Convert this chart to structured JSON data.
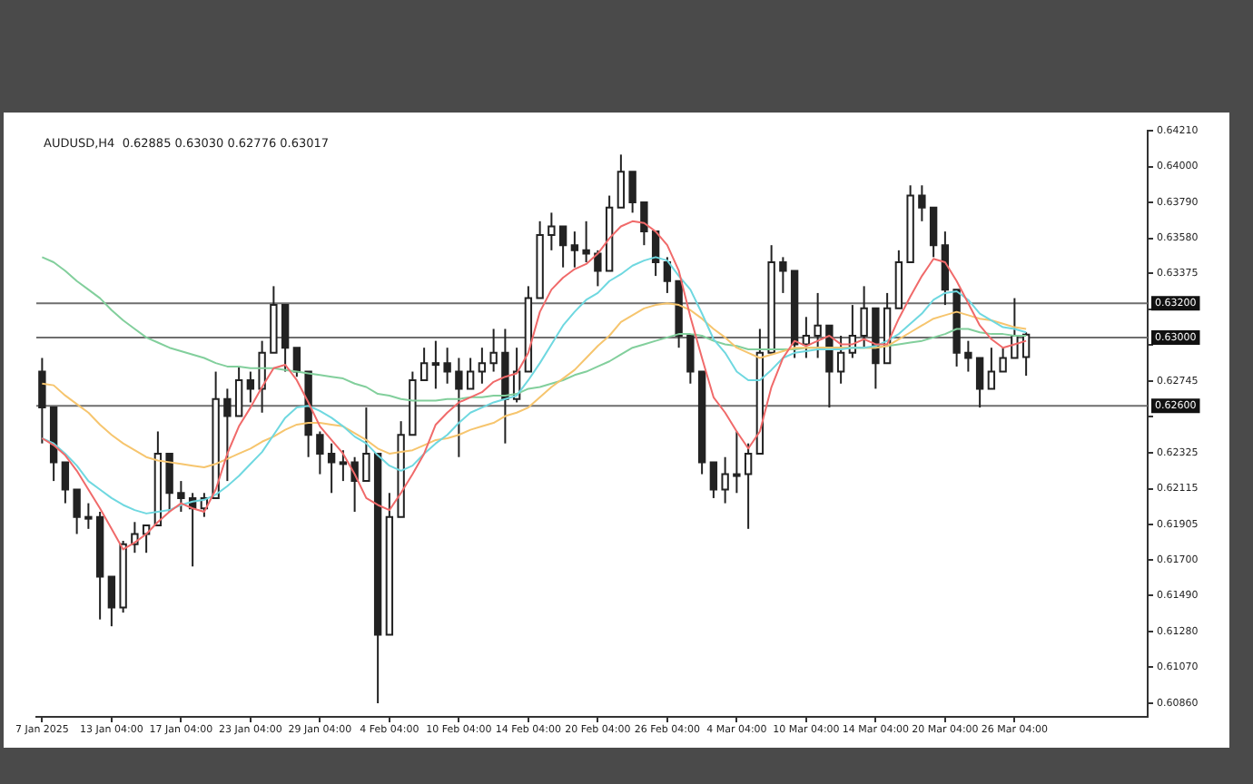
{
  "chart_data": {
    "type": "candlestick",
    "subtitle": "AUDUSD,H4  0.62885 0.63030 0.62776 0.63017",
    "categories": [
      "7 Jan 2025",
      null,
      null,
      null,
      null,
      null,
      "13 Jan 04:00",
      null,
      null,
      null,
      null,
      null,
      "17 Jan 04:00",
      null,
      null,
      null,
      null,
      null,
      "23 Jan 04:00",
      null,
      null,
      null,
      null,
      null,
      "29 Jan 04:00",
      null,
      null,
      null,
      null,
      null,
      "4 Feb 04:00",
      null,
      null,
      null,
      null,
      null,
      "10 Feb 04:00",
      null,
      null,
      null,
      null,
      null,
      "14 Feb 04:00",
      null,
      null,
      null,
      null,
      null,
      "20 Feb 04:00",
      null,
      null,
      null,
      null,
      null,
      "26 Feb 04:00",
      null,
      null,
      null,
      null,
      null,
      "4 Mar 04:00",
      null,
      null,
      null,
      null,
      null,
      "10 Mar 04:00",
      null,
      null,
      null,
      null,
      null,
      "14 Mar 04:00",
      null,
      null,
      null,
      null,
      null,
      "20 Mar 04:00",
      null,
      null,
      null,
      null,
      null,
      "26 Mar 04:00",
      null,
      null,
      null,
      null,
      null,
      null,
      null,
      null,
      null,
      null,
      null
    ],
    "ohlc": [
      [
        0.628,
        0.6288,
        0.6238,
        0.6259
      ],
      [
        0.6259,
        0.6259,
        0.6216,
        0.6227
      ],
      [
        0.6227,
        0.6227,
        0.6203,
        0.6211
      ],
      [
        0.6211,
        0.6211,
        0.6185,
        0.6195
      ],
      [
        0.6195,
        0.6203,
        0.6188,
        0.6195
      ],
      [
        0.6195,
        0.6198,
        0.6135,
        0.616
      ],
      [
        0.616,
        0.616,
        0.6131,
        0.6142
      ],
      [
        0.6142,
        0.6181,
        0.6139,
        0.6179
      ],
      [
        0.6179,
        0.6192,
        0.6174,
        0.6185
      ],
      [
        0.6185,
        0.619,
        0.6174,
        0.619
      ],
      [
        0.619,
        0.6245,
        0.619,
        0.6232
      ],
      [
        0.6232,
        0.6232,
        0.6198,
        0.6209
      ],
      [
        0.6209,
        0.6216,
        0.6198,
        0.6206
      ],
      [
        0.6206,
        0.6209,
        0.6166,
        0.62
      ],
      [
        0.62,
        0.6209,
        0.6195,
        0.6206
      ],
      [
        0.6206,
        0.628,
        0.6206,
        0.6264
      ],
      [
        0.6264,
        0.627,
        0.6216,
        0.6254
      ],
      [
        0.6254,
        0.6283,
        0.6254,
        0.6275
      ],
      [
        0.6275,
        0.628,
        0.6262,
        0.627
      ],
      [
        0.627,
        0.6298,
        0.6256,
        0.6291
      ],
      [
        0.6291,
        0.633,
        0.6291,
        0.6319
      ],
      [
        0.6319,
        0.6319,
        0.628,
        0.6294
      ],
      [
        0.6294,
        0.6294,
        0.6277,
        0.628
      ],
      [
        0.628,
        0.628,
        0.623,
        0.6243
      ],
      [
        0.6243,
        0.6245,
        0.622,
        0.6232
      ],
      [
        0.6232,
        0.6238,
        0.6209,
        0.6227
      ],
      [
        0.6227,
        0.6234,
        0.6216,
        0.6227
      ],
      [
        0.6227,
        0.623,
        0.6198,
        0.6216
      ],
      [
        0.6216,
        0.6259,
        0.6216,
        0.6232
      ],
      [
        0.6232,
        0.6232,
        0.6086,
        0.6126
      ],
      [
        0.6126,
        0.6209,
        0.6126,
        0.6195
      ],
      [
        0.6195,
        0.6251,
        0.6195,
        0.6243
      ],
      [
        0.6243,
        0.628,
        0.6243,
        0.6275
      ],
      [
        0.6275,
        0.6294,
        0.6275,
        0.6285
      ],
      [
        0.6285,
        0.6298,
        0.627,
        0.6285
      ],
      [
        0.6285,
        0.6294,
        0.6273,
        0.628
      ],
      [
        0.628,
        0.6288,
        0.623,
        0.627
      ],
      [
        0.627,
        0.6288,
        0.627,
        0.628
      ],
      [
        0.628,
        0.6294,
        0.6273,
        0.6285
      ],
      [
        0.6285,
        0.6305,
        0.628,
        0.6291
      ],
      [
        0.6291,
        0.6305,
        0.6238,
        0.6264
      ],
      [
        0.6264,
        0.6294,
        0.6262,
        0.628
      ],
      [
        0.628,
        0.633,
        0.628,
        0.6323
      ],
      [
        0.6323,
        0.6368,
        0.6323,
        0.636
      ],
      [
        0.636,
        0.6373,
        0.6351,
        0.6365
      ],
      [
        0.6365,
        0.6365,
        0.6341,
        0.6354
      ],
      [
        0.6354,
        0.6362,
        0.6341,
        0.6351
      ],
      [
        0.6351,
        0.6368,
        0.6344,
        0.6349
      ],
      [
        0.6349,
        0.6351,
        0.633,
        0.6339
      ],
      [
        0.6339,
        0.6383,
        0.6339,
        0.6376
      ],
      [
        0.6376,
        0.6407,
        0.6376,
        0.6397
      ],
      [
        0.6397,
        0.6397,
        0.6373,
        0.6379
      ],
      [
        0.6379,
        0.6379,
        0.6354,
        0.6362
      ],
      [
        0.6362,
        0.6362,
        0.6336,
        0.6344
      ],
      [
        0.6344,
        0.6347,
        0.6326,
        0.6333
      ],
      [
        0.6333,
        0.6333,
        0.6294,
        0.6301
      ],
      [
        0.6301,
        0.6301,
        0.6273,
        0.628
      ],
      [
        0.628,
        0.628,
        0.622,
        0.6227
      ],
      [
        0.6227,
        0.6227,
        0.6206,
        0.6211
      ],
      [
        0.6211,
        0.623,
        0.6203,
        0.622
      ],
      [
        0.622,
        0.6245,
        0.6209,
        0.622
      ],
      [
        0.622,
        0.6238,
        0.6188,
        0.6232
      ],
      [
        0.6232,
        0.6305,
        0.6232,
        0.6291
      ],
      [
        0.6291,
        0.6354,
        0.6291,
        0.6344
      ],
      [
        0.6344,
        0.6347,
        0.6326,
        0.6339
      ],
      [
        0.6339,
        0.6339,
        0.6288,
        0.6296
      ],
      [
        0.6296,
        0.6312,
        0.6288,
        0.6301
      ],
      [
        0.6301,
        0.6326,
        0.6288,
        0.6307
      ],
      [
        0.6307,
        0.6307,
        0.6259,
        0.628
      ],
      [
        0.628,
        0.6301,
        0.6273,
        0.6291
      ],
      [
        0.6291,
        0.6319,
        0.6288,
        0.6301
      ],
      [
        0.6301,
        0.633,
        0.6294,
        0.6317
      ],
      [
        0.6317,
        0.6317,
        0.627,
        0.6285
      ],
      [
        0.6285,
        0.6326,
        0.6285,
        0.6317
      ],
      [
        0.6317,
        0.6351,
        0.6317,
        0.6344
      ],
      [
        0.6344,
        0.6389,
        0.6344,
        0.6383
      ],
      [
        0.6383,
        0.6389,
        0.6368,
        0.6376
      ],
      [
        0.6376,
        0.6376,
        0.6347,
        0.6354
      ],
      [
        0.6354,
        0.6362,
        0.6319,
        0.6328
      ],
      [
        0.6328,
        0.6328,
        0.6283,
        0.6291
      ],
      [
        0.6291,
        0.6298,
        0.628,
        0.6288
      ],
      [
        0.6288,
        0.6288,
        0.6259,
        0.627
      ],
      [
        0.627,
        0.6294,
        0.627,
        0.628
      ],
      [
        0.628,
        0.6294,
        0.628,
        0.6288
      ],
      [
        0.6288,
        0.6323,
        0.6288,
        0.6301
      ],
      [
        0.62885,
        0.6303,
        0.62776,
        0.63017
      ],
      null,
      null,
      null,
      null,
      null,
      null,
      null,
      null,
      null,
      null
    ],
    "series": [
      {
        "type": "line",
        "color": "#f06a6a",
        "values": [
          0.6241,
          0.6237,
          0.6231,
          0.6222,
          0.6211,
          0.62,
          0.6188,
          0.6176,
          0.618,
          0.6185,
          0.6192,
          0.6198,
          0.6203,
          0.62,
          0.6198,
          0.6211,
          0.6232,
          0.6248,
          0.6259,
          0.6271,
          0.6282,
          0.6284,
          0.6275,
          0.6262,
          0.6248,
          0.624,
          0.6232,
          0.622,
          0.6206,
          0.6202,
          0.6199,
          0.6209,
          0.622,
          0.6232,
          0.6249,
          0.6256,
          0.6262,
          0.6265,
          0.6268,
          0.6274,
          0.6277,
          0.6279,
          0.6291,
          0.6315,
          0.6328,
          0.6335,
          0.634,
          0.6343,
          0.6349,
          0.6358,
          0.6365,
          0.6368,
          0.6367,
          0.6362,
          0.6354,
          0.6339,
          0.6312,
          0.6288,
          0.6265,
          0.6256,
          0.6245,
          0.6235,
          0.6245,
          0.6271,
          0.6288,
          0.6298,
          0.6295,
          0.6298,
          0.6301,
          0.6296,
          0.6296,
          0.6299,
          0.6296,
          0.6296,
          0.6311,
          0.6324,
          0.6336,
          0.6346,
          0.6344,
          0.6333,
          0.632,
          0.6307,
          0.6299,
          0.6294,
          0.6296,
          0.6298,
          null,
          null,
          null,
          null,
          null,
          null,
          null,
          null,
          null,
          null
        ]
      },
      {
        "type": "line",
        "color": "#6fd8e0",
        "values": [
          0.6241,
          0.6238,
          0.6232,
          0.6225,
          0.6216,
          0.6211,
          0.6206,
          0.6202,
          0.6199,
          0.6197,
          0.6198,
          0.6199,
          0.6202,
          0.6204,
          0.6205,
          0.6208,
          0.6213,
          0.6219,
          0.6226,
          0.6233,
          0.6243,
          0.6253,
          0.6259,
          0.626,
          0.6257,
          0.6253,
          0.6248,
          0.6242,
          0.6238,
          0.6231,
          0.6225,
          0.6222,
          0.6225,
          0.6232,
          0.6238,
          0.6243,
          0.625,
          0.6256,
          0.6259,
          0.6262,
          0.6264,
          0.6266,
          0.6275,
          0.6285,
          0.6296,
          0.6307,
          0.6315,
          0.6322,
          0.6326,
          0.6333,
          0.6337,
          0.6342,
          0.6345,
          0.6347,
          0.6345,
          0.6336,
          0.6328,
          0.6314,
          0.6299,
          0.6291,
          0.628,
          0.6275,
          0.6275,
          0.6281,
          0.6288,
          0.6291,
          0.6292,
          0.6293,
          0.6293,
          0.6293,
          0.6294,
          0.6294,
          0.6295,
          0.6298,
          0.6302,
          0.6308,
          0.6314,
          0.6322,
          0.6326,
          0.6327,
          0.6322,
          0.6314,
          0.631,
          0.6306,
          0.6305,
          0.6303,
          null,
          null,
          null,
          null,
          null,
          null,
          null,
          null,
          null,
          null
        ]
      },
      {
        "type": "line",
        "color": "#f6c56e",
        "values": [
          0.6273,
          0.6272,
          0.6266,
          0.6261,
          0.6256,
          0.6249,
          0.6243,
          0.6238,
          0.6234,
          0.623,
          0.6228,
          0.6227,
          0.6226,
          0.6225,
          0.6224,
          0.6226,
          0.6229,
          0.6232,
          0.6235,
          0.6239,
          0.6242,
          0.6246,
          0.6249,
          0.625,
          0.625,
          0.6249,
          0.6248,
          0.6244,
          0.624,
          0.6235,
          0.6232,
          0.6233,
          0.6234,
          0.6237,
          0.624,
          0.6241,
          0.6243,
          0.6246,
          0.6248,
          0.625,
          0.6254,
          0.6256,
          0.6259,
          0.6265,
          0.6271,
          0.6276,
          0.6281,
          0.6288,
          0.6295,
          0.6301,
          0.6309,
          0.6313,
          0.6317,
          0.6319,
          0.632,
          0.6319,
          0.6316,
          0.6311,
          0.6305,
          0.63,
          0.6294,
          0.6291,
          0.6288,
          0.629,
          0.6292,
          0.6294,
          0.6294,
          0.6294,
          0.6294,
          0.6294,
          0.6294,
          0.6294,
          0.6294,
          0.6295,
          0.6299,
          0.6303,
          0.6307,
          0.6311,
          0.6313,
          0.6315,
          0.6313,
          0.6311,
          0.631,
          0.6308,
          0.6306,
          0.6305,
          null,
          null,
          null,
          null,
          null,
          null,
          null,
          null,
          null,
          null
        ]
      },
      {
        "type": "line",
        "color": "#82cf9c",
        "values": [
          0.6347,
          0.6344,
          0.6339,
          0.6333,
          0.6328,
          0.6323,
          0.6316,
          0.631,
          0.6305,
          0.63,
          0.6297,
          0.6294,
          0.6292,
          0.629,
          0.6288,
          0.6285,
          0.6283,
          0.6283,
          0.6282,
          0.6282,
          0.6282,
          0.6281,
          0.628,
          0.6279,
          0.6278,
          0.6277,
          0.6276,
          0.6273,
          0.6271,
          0.6267,
          0.6266,
          0.6264,
          0.6263,
          0.6263,
          0.6263,
          0.6264,
          0.6264,
          0.6265,
          0.6265,
          0.6266,
          0.6266,
          0.6267,
          0.627,
          0.6271,
          0.6273,
          0.6275,
          0.6278,
          0.628,
          0.6283,
          0.6286,
          0.629,
          0.6294,
          0.6296,
          0.6298,
          0.63,
          0.6302,
          0.6302,
          0.6301,
          0.6298,
          0.6296,
          0.6295,
          0.6293,
          0.6293,
          0.6293,
          0.6293,
          0.6293,
          0.6294,
          0.6294,
          0.6294,
          0.6294,
          0.6294,
          0.6294,
          0.6294,
          0.6295,
          0.6296,
          0.6297,
          0.6298,
          0.63,
          0.6302,
          0.6305,
          0.6305,
          0.6303,
          0.6302,
          0.6302,
          0.6301,
          0.6301,
          null,
          null,
          null,
          null,
          null,
          null,
          null,
          null,
          null,
          null
        ]
      }
    ],
    "ylim": [
      0.6078,
      0.6421
    ],
    "yticks": [
      {
        "value": 0.6421,
        "label": "0.64210"
      },
      {
        "value": 0.64,
        "label": "0.64000"
      },
      {
        "value": 0.6379,
        "label": "0.63790"
      },
      {
        "value": 0.6358,
        "label": "0.63580"
      },
      {
        "value": 0.63375,
        "label": "0.63375"
      },
      {
        "value": 0.63165,
        "label": null
      },
      {
        "value": 0.62955,
        "label": null
      },
      {
        "value": 0.62745,
        "label": "0.62745"
      },
      {
        "value": 0.62535,
        "label": null
      },
      {
        "value": 0.62325,
        "label": "0.62325"
      },
      {
        "value": 0.62115,
        "label": "0.62115"
      },
      {
        "value": 0.61905,
        "label": "0.61905"
      },
      {
        "value": 0.617,
        "label": "0.61700"
      },
      {
        "value": 0.6149,
        "label": "0.61490"
      },
      {
        "value": 0.6128,
        "label": "0.61280"
      },
      {
        "value": 0.6107,
        "label": "0.61070"
      },
      {
        "value": 0.6086,
        "label": "0.60860"
      }
    ],
    "ref_lines": [
      {
        "axis": "y",
        "value": 0.632,
        "label": "0.63200",
        "color": "#6e6e6e"
      },
      {
        "axis": "y",
        "value": 0.63,
        "label": "0.63000",
        "color": "#6e6e6e"
      },
      {
        "axis": "y",
        "value": 0.626,
        "label": "0.62600",
        "color": "#6e6e6e"
      }
    ]
  }
}
